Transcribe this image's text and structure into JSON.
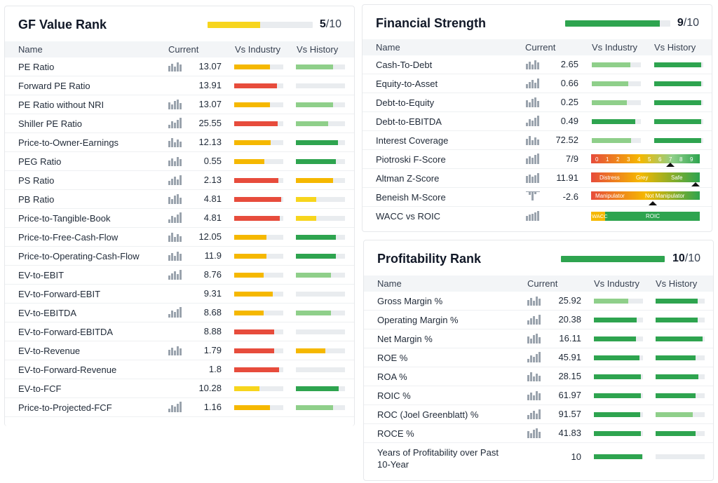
{
  "colors": {
    "red": "#e74c3c",
    "orange": "#f5b800",
    "yellow": "#f7d51d",
    "lightgreen": "#8fcf8a",
    "green": "#2ea44f",
    "track": "#e9ecef"
  },
  "value_rank": {
    "title": "GF Value Rank",
    "score": "5",
    "max": "/10",
    "bar_level": 0.5,
    "bar_color": "#f7d51d",
    "columns": {
      "name": "Name",
      "current": "Current",
      "industry": "Vs Industry",
      "history": "Vs History"
    },
    "rows": [
      {
        "name": "PE Ratio",
        "value": "13.07",
        "spark": true,
        "ind": 0.73,
        "indc": "orange",
        "hist": 0.75,
        "histc": "lightgreen"
      },
      {
        "name": "Forward PE Ratio",
        "value": "13.91",
        "spark": false,
        "ind": 0.87,
        "indc": "red",
        "hist": 0,
        "histc": "lightgreen"
      },
      {
        "name": "PE Ratio without NRI",
        "value": "13.07",
        "spark": true,
        "ind": 0.73,
        "indc": "orange",
        "hist": 0.75,
        "histc": "lightgreen"
      },
      {
        "name": "Shiller PE Ratio",
        "value": "25.55",
        "spark": true,
        "ind": 0.88,
        "indc": "red",
        "hist": 0.65,
        "histc": "lightgreen"
      },
      {
        "name": "Price-to-Owner-Earnings",
        "value": "12.13",
        "spark": true,
        "ind": 0.74,
        "indc": "orange",
        "hist": 0.85,
        "histc": "green"
      },
      {
        "name": "PEG Ratio",
        "value": "0.55",
        "spark": true,
        "ind": 0.62,
        "indc": "orange",
        "hist": 0.82,
        "histc": "green"
      },
      {
        "name": "PS Ratio",
        "value": "2.13",
        "spark": true,
        "ind": 0.9,
        "indc": "red",
        "hist": 0.75,
        "histc": "orange"
      },
      {
        "name": "PB Ratio",
        "value": "4.81",
        "spark": true,
        "ind": 0.95,
        "indc": "red",
        "hist": 0.42,
        "histc": "yellow"
      },
      {
        "name": "Price-to-Tangible-Book",
        "value": "4.81",
        "spark": true,
        "ind": 0.93,
        "indc": "red",
        "hist": 0.42,
        "histc": "yellow"
      },
      {
        "name": "Price-to-Free-Cash-Flow",
        "value": "12.05",
        "spark": true,
        "ind": 0.65,
        "indc": "orange",
        "hist": 0.82,
        "histc": "green"
      },
      {
        "name": "Price-to-Operating-Cash-Flow",
        "value": "11.9",
        "spark": true,
        "ind": 0.65,
        "indc": "orange",
        "hist": 0.82,
        "histc": "green"
      },
      {
        "name": "EV-to-EBIT",
        "value": "8.76",
        "spark": true,
        "ind": 0.6,
        "indc": "orange",
        "hist": 0.72,
        "histc": "lightgreen"
      },
      {
        "name": "EV-to-Forward-EBIT",
        "value": "9.31",
        "spark": false,
        "ind": 0.78,
        "indc": "orange",
        "hist": 0,
        "histc": "lightgreen"
      },
      {
        "name": "EV-to-EBITDA",
        "value": "8.68",
        "spark": true,
        "ind": 0.6,
        "indc": "orange",
        "hist": 0.72,
        "histc": "lightgreen"
      },
      {
        "name": "EV-to-Forward-EBITDA",
        "value": "8.88",
        "spark": false,
        "ind": 0.82,
        "indc": "red",
        "hist": 0,
        "histc": "lightgreen"
      },
      {
        "name": "EV-to-Revenue",
        "value": "1.79",
        "spark": true,
        "ind": 0.82,
        "indc": "red",
        "hist": 0.6,
        "histc": "orange"
      },
      {
        "name": "EV-to-Forward-Revenue",
        "value": "1.8",
        "spark": false,
        "ind": 0.92,
        "indc": "red",
        "hist": 0,
        "histc": "lightgreen"
      },
      {
        "name": "EV-to-FCF",
        "value": "10.28",
        "spark": false,
        "ind": 0.52,
        "indc": "yellow",
        "hist": 0.87,
        "histc": "green"
      },
      {
        "name": "Price-to-Projected-FCF",
        "value": "1.16",
        "spark": true,
        "ind": 0.73,
        "indc": "orange",
        "hist": 0.75,
        "histc": "lightgreen"
      }
    ]
  },
  "financial_strength": {
    "title": "Financial Strength",
    "score": "9",
    "max": "/10",
    "bar_level": 0.9,
    "bar_color": "#2ea44f",
    "columns": {
      "name": "Name",
      "current": "Current",
      "industry": "Vs Industry",
      "history": "Vs History"
    },
    "rows": [
      {
        "name": "Cash-To-Debt",
        "value": "2.65",
        "spark": true,
        "ind": 0.78,
        "indc": "lightgreen",
        "hist": 0.95,
        "histc": "green"
      },
      {
        "name": "Equity-to-Asset",
        "value": "0.66",
        "spark": true,
        "ind": 0.74,
        "indc": "lightgreen",
        "hist": 0.95,
        "histc": "green"
      },
      {
        "name": "Debt-to-Equity",
        "value": "0.25",
        "spark": true,
        "ind": 0.72,
        "indc": "lightgreen",
        "hist": 0.95,
        "histc": "green"
      },
      {
        "name": "Debt-to-EBITDA",
        "value": "0.49",
        "spark": true,
        "ind": 0.88,
        "indc": "green",
        "hist": 0.95,
        "histc": "green"
      },
      {
        "name": "Interest Coverage",
        "value": "72.52",
        "spark": true,
        "ind": 0.8,
        "indc": "lightgreen",
        "hist": 0.95,
        "histc": "green"
      }
    ],
    "piotroski": {
      "name": "Piotroski F-Score",
      "value": "7/9",
      "ticks": [
        "0",
        "1",
        "2",
        "3",
        "4",
        "5",
        "6",
        "7",
        "8",
        "9"
      ],
      "marker": 7
    },
    "altman": {
      "name": "Altman Z-Score",
      "value": "11.91",
      "labels": [
        "Distress",
        "Grey",
        "Safe"
      ]
    },
    "beneish": {
      "name": "Beneish M-Score",
      "value": "-2.6",
      "labels": [
        "Manipulator",
        "Not Manipulator"
      ]
    },
    "wacc": {
      "name": "WACC vs ROIC",
      "labels": [
        "WACC",
        "ROIC"
      ]
    }
  },
  "profitability_rank": {
    "title": "Profitability Rank",
    "score": "10",
    "max": "/10",
    "bar_level": 1.0,
    "bar_color": "#2ea44f",
    "columns": {
      "name": "Name",
      "current": "Current",
      "industry": "Vs Industry",
      "history": "Vs History"
    },
    "rows": [
      {
        "name": "Gross Margin %",
        "value": "25.92",
        "spark": true,
        "ind": 0.7,
        "indc": "lightgreen",
        "hist": 0.85,
        "histc": "green"
      },
      {
        "name": "Operating Margin %",
        "value": "20.38",
        "spark": true,
        "ind": 0.87,
        "indc": "green",
        "hist": 0.85,
        "histc": "green"
      },
      {
        "name": "Net Margin %",
        "value": "16.11",
        "spark": true,
        "ind": 0.86,
        "indc": "green",
        "hist": 0.95,
        "histc": "green"
      },
      {
        "name": "ROE %",
        "value": "45.91",
        "spark": true,
        "ind": 0.93,
        "indc": "green",
        "hist": 0.82,
        "histc": "green"
      },
      {
        "name": "ROA %",
        "value": "28.15",
        "spark": true,
        "ind": 0.96,
        "indc": "green",
        "hist": 0.87,
        "histc": "green"
      },
      {
        "name": "ROIC %",
        "value": "61.97",
        "spark": true,
        "ind": 0.95,
        "indc": "green",
        "hist": 0.82,
        "histc": "green"
      },
      {
        "name": "ROC (Joel Greenblatt) %",
        "value": "91.57",
        "spark": true,
        "ind": 0.94,
        "indc": "green",
        "hist": 0.75,
        "histc": "lightgreen"
      },
      {
        "name": "ROCE %",
        "value": "41.83",
        "spark": true,
        "ind": 0.96,
        "indc": "green",
        "hist": 0.82,
        "histc": "green"
      }
    ],
    "years": {
      "name_line1": "Years of Profitability over Past",
      "name_line2": "10-Year",
      "value": "10",
      "ind": 0.98,
      "indc": "green",
      "hist": 0,
      "histc": "green"
    }
  }
}
